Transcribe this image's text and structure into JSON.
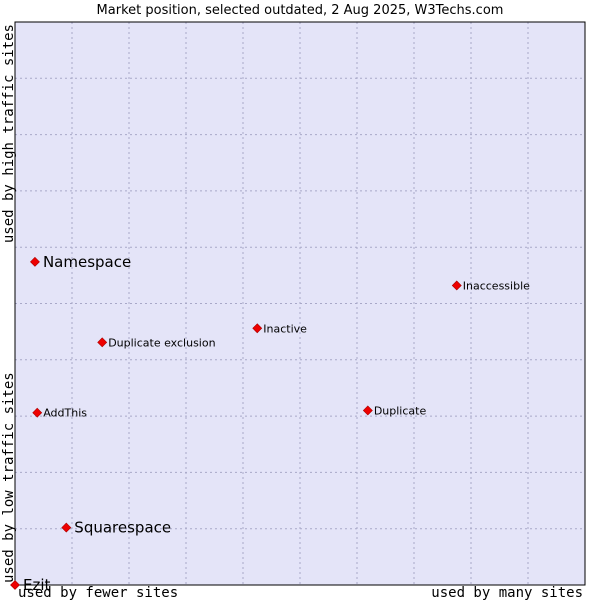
{
  "chart_data": {
    "type": "scatter",
    "title": "Market position, selected outdated, 2 Aug 2025, W3Techs.com",
    "xlabel_left": "used by fewer sites",
    "xlabel_right": "used by many sites",
    "ylabel_bottom": "used by low traffic sites",
    "ylabel_top": "used by high traffic sites",
    "xlim": [
      0,
      100
    ],
    "ylim": [
      0,
      100
    ],
    "grid": true,
    "colors": {
      "plot_bg": "#e4e4f8",
      "grid": "#a8a8c8",
      "marker": "#ee0000"
    },
    "points": [
      {
        "label": "Namespace",
        "x": 3.5,
        "y": 57.4,
        "size": "large"
      },
      {
        "label": "Inaccessible",
        "x": 77.5,
        "y": 53.2,
        "size": "small"
      },
      {
        "label": "Inactive",
        "x": 42.5,
        "y": 45.6,
        "size": "small"
      },
      {
        "label": "Duplicate exclusion",
        "x": 15.3,
        "y": 43.1,
        "size": "small"
      },
      {
        "label": "AddThis",
        "x": 3.9,
        "y": 30.6,
        "size": "small"
      },
      {
        "label": "Duplicate",
        "x": 61.9,
        "y": 31.0,
        "size": "small"
      },
      {
        "label": "Squarespace",
        "x": 9.0,
        "y": 10.2,
        "size": "large"
      },
      {
        "label": "Ezit",
        "x": 0.0,
        "y": 0.0,
        "size": "large"
      }
    ]
  }
}
